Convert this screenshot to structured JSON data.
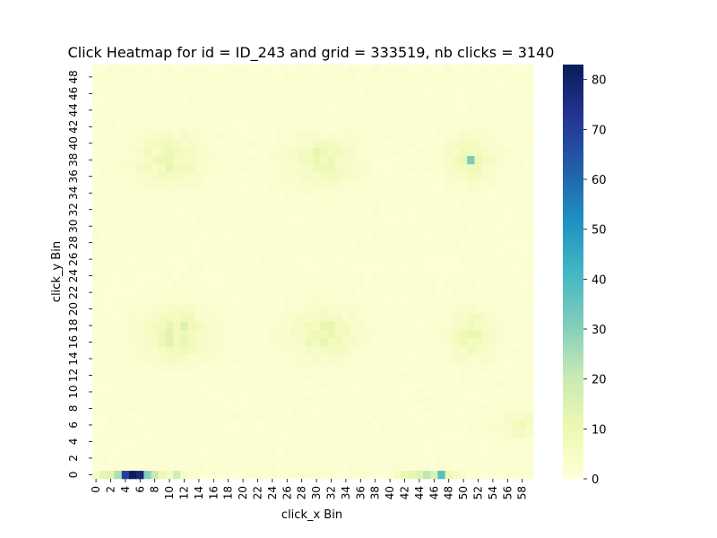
{
  "chart_data": {
    "type": "heatmap",
    "title": "Click Heatmap for id = ID_243 and grid = 333519, nb clicks = 3140",
    "xlabel": "click_x Bin",
    "ylabel": "click_y Bin",
    "x_bins": 60,
    "y_bins": 50,
    "x_tick_labels": [
      "0",
      "2",
      "4",
      "6",
      "8",
      "10",
      "12",
      "14",
      "16",
      "18",
      "20",
      "22",
      "24",
      "26",
      "28",
      "30",
      "32",
      "34",
      "36",
      "38",
      "40",
      "42",
      "44",
      "46",
      "48",
      "50",
      "52",
      "54",
      "56",
      "58"
    ],
    "y_tick_labels": [
      "0",
      "2",
      "4",
      "6",
      "8",
      "10",
      "12",
      "14",
      "16",
      "18",
      "20",
      "22",
      "24",
      "26",
      "28",
      "30",
      "32",
      "34",
      "36",
      "38",
      "40",
      "42",
      "44",
      "46",
      "48"
    ],
    "colormap": "YlGnBu",
    "vmin": 0,
    "vmax": 83,
    "colorbar_ticks": [
      "0",
      "10",
      "20",
      "30",
      "40",
      "50",
      "60",
      "70",
      "80"
    ],
    "base_value": 1,
    "row_overrides": [
      {
        "y": 0,
        "values": [
          {
            "x": 0,
            "v": 5
          },
          {
            "x": 1,
            "v": 12
          },
          {
            "x": 2,
            "v": 14
          },
          {
            "x": 3,
            "v": 25
          },
          {
            "x": 4,
            "v": 70
          },
          {
            "x": 5,
            "v": 83
          },
          {
            "x": 6,
            "v": 78
          },
          {
            "x": 7,
            "v": 30
          },
          {
            "x": 8,
            "v": 20
          },
          {
            "x": 9,
            "v": 10
          },
          {
            "x": 10,
            "v": 6
          },
          {
            "x": 11,
            "v": 18
          },
          {
            "x": 12,
            "v": 5
          },
          {
            "x": 13,
            "v": 3
          },
          {
            "x": 14,
            "v": 2
          },
          {
            "x": 41,
            "v": 6
          },
          {
            "x": 42,
            "v": 10
          },
          {
            "x": 43,
            "v": 12
          },
          {
            "x": 44,
            "v": 14
          },
          {
            "x": 45,
            "v": 22
          },
          {
            "x": 46,
            "v": 15
          },
          {
            "x": 47,
            "v": 38
          },
          {
            "x": 48,
            "v": 10
          },
          {
            "x": 49,
            "v": 6
          },
          {
            "x": 50,
            "v": 4
          }
        ]
      }
    ],
    "hotspots": [
      {
        "x": 51,
        "y": 38,
        "v": 32
      },
      {
        "x": 30,
        "y": 39,
        "v": 12
      },
      {
        "x": 10,
        "y": 16,
        "v": 14
      },
      {
        "x": 12,
        "y": 18,
        "v": 15
      }
    ],
    "clusters": [
      {
        "cx": 10,
        "cy": 38,
        "sx": 3,
        "sy": 2,
        "peak": 7
      },
      {
        "cx": 31,
        "cy": 38,
        "sx": 3,
        "sy": 2,
        "peak": 7
      },
      {
        "cx": 51,
        "cy": 38,
        "sx": 2,
        "sy": 2,
        "peak": 7
      },
      {
        "cx": 11,
        "cy": 17,
        "sx": 3,
        "sy": 2,
        "peak": 9
      },
      {
        "cx": 31,
        "cy": 17,
        "sx": 3,
        "sy": 2,
        "peak": 8
      },
      {
        "cx": 51,
        "cy": 17,
        "sx": 2,
        "sy": 2,
        "peak": 7
      },
      {
        "cx": 58,
        "cy": 6,
        "sx": 2,
        "sy": 1,
        "peak": 5
      }
    ]
  }
}
